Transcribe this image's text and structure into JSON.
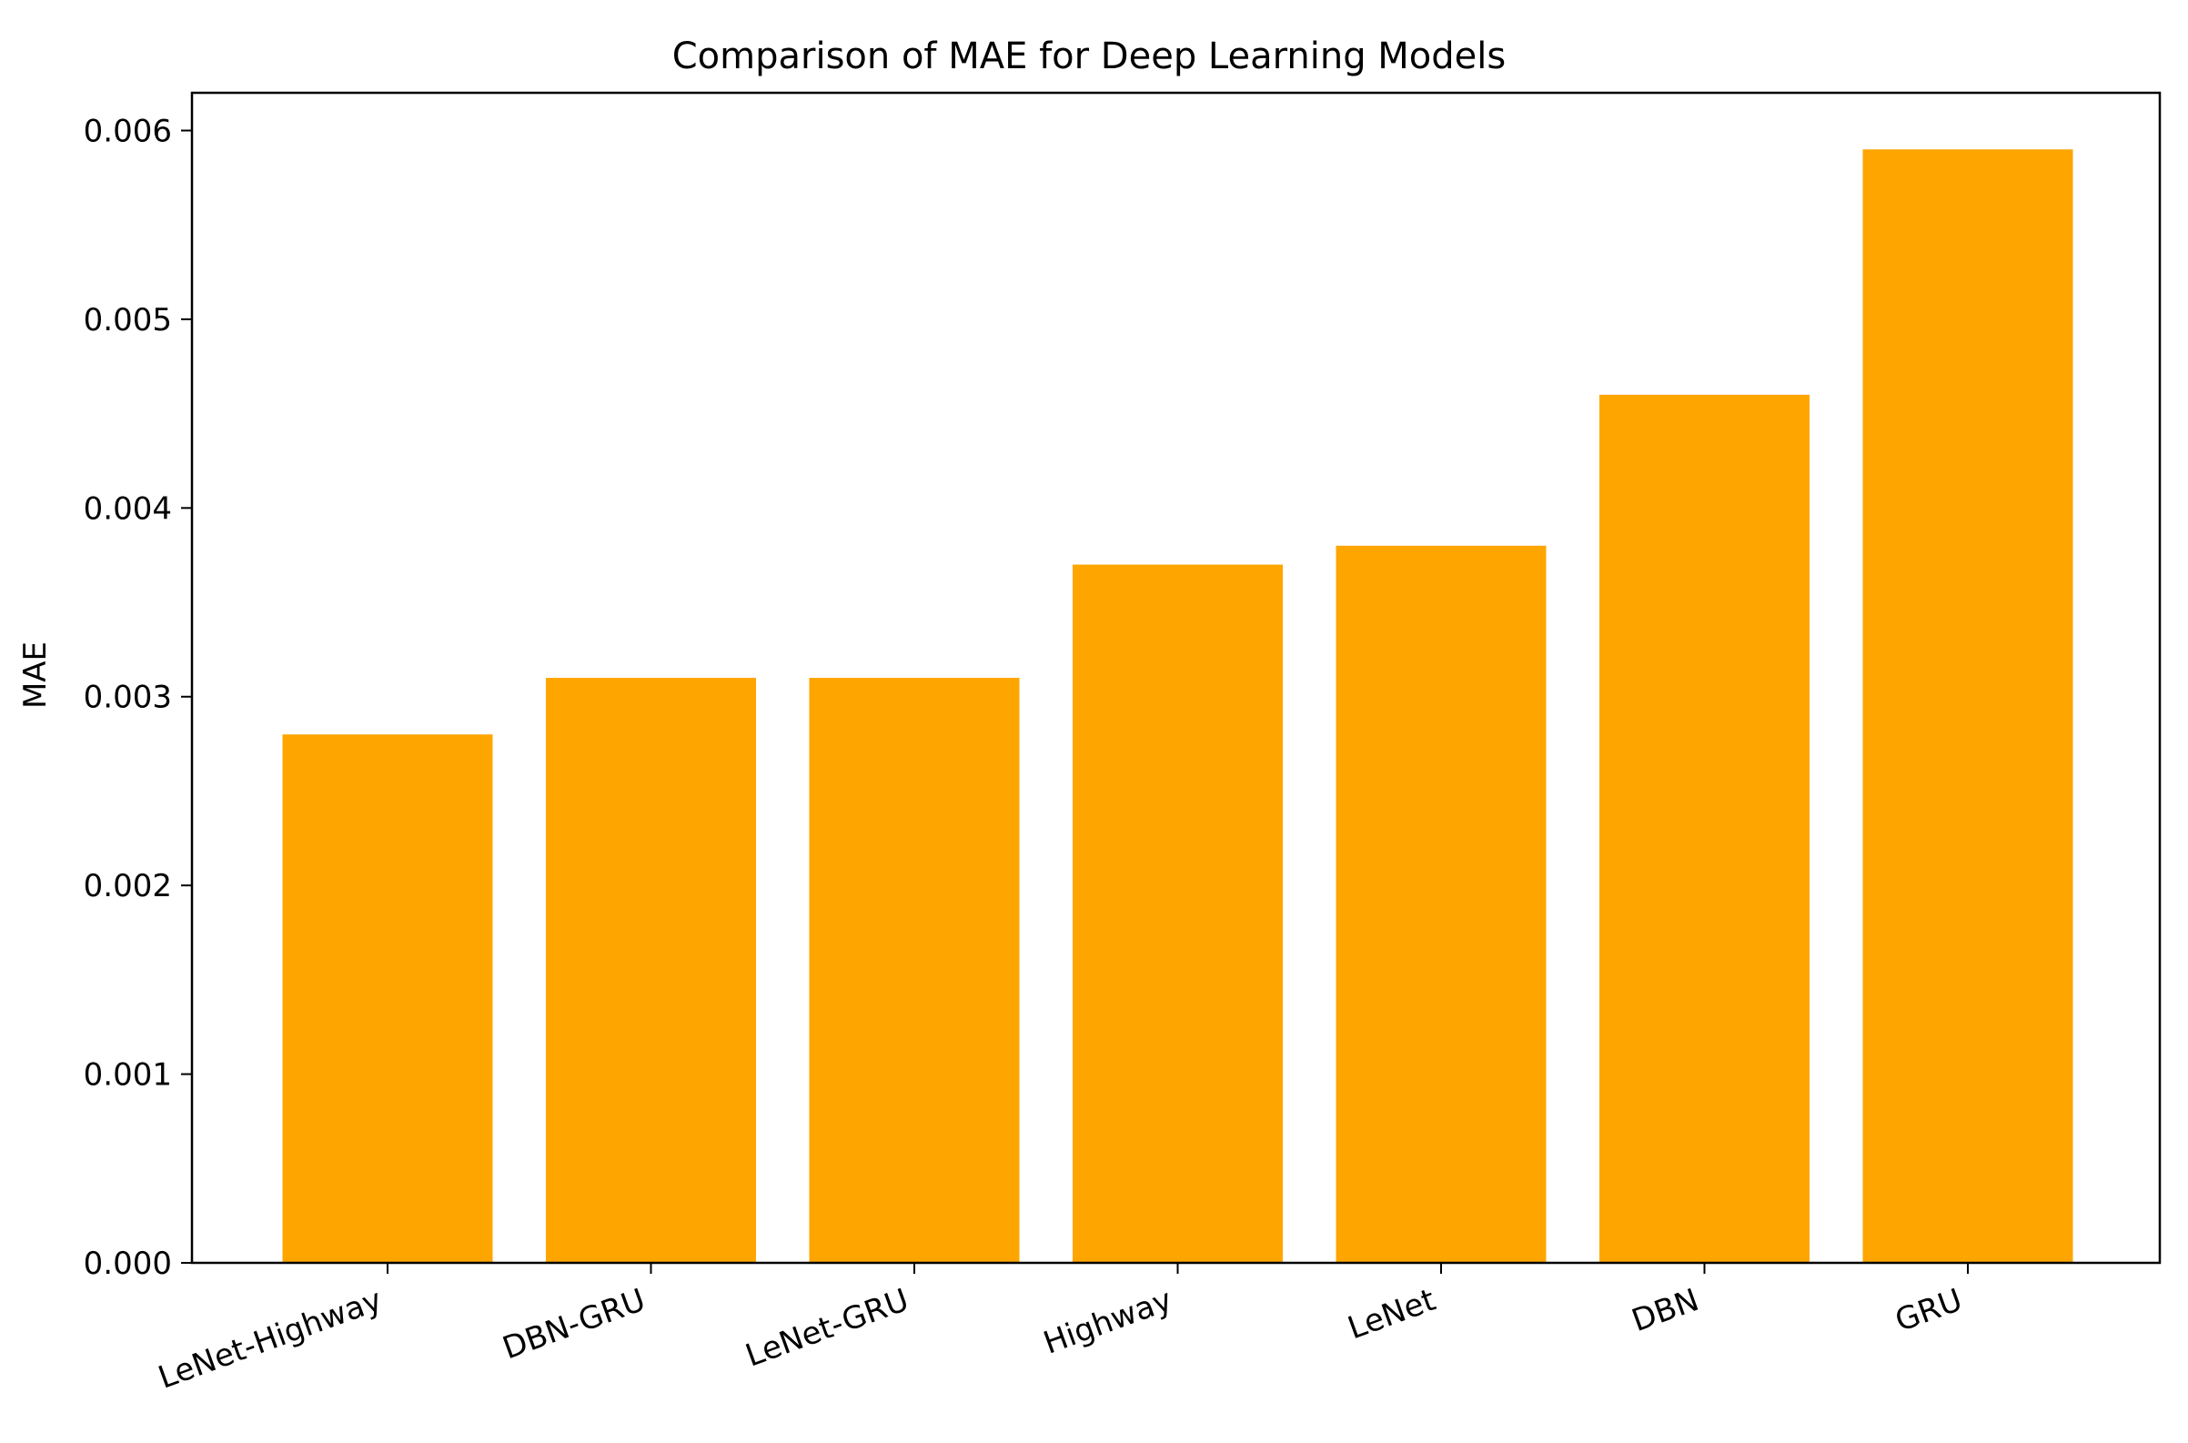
{
  "chart_data": {
    "type": "bar",
    "title": "Comparison of MAE for Deep Learning Models",
    "xlabel": "",
    "ylabel": "MAE",
    "categories": [
      "LeNet-Highway",
      "DBN-GRU",
      "LeNet-GRU",
      "Highway",
      "LeNet",
      "DBN",
      "GRU"
    ],
    "values": [
      0.0028,
      0.0031,
      0.0031,
      0.0037,
      0.0038,
      0.0046,
      0.0059
    ],
    "ylim": [
      0,
      0.0062
    ],
    "yticks": [
      "0.000",
      "0.001",
      "0.002",
      "0.003",
      "0.004",
      "0.005",
      "0.006"
    ],
    "bar_color": "#ffa500",
    "grid": false,
    "legend": "none"
  }
}
